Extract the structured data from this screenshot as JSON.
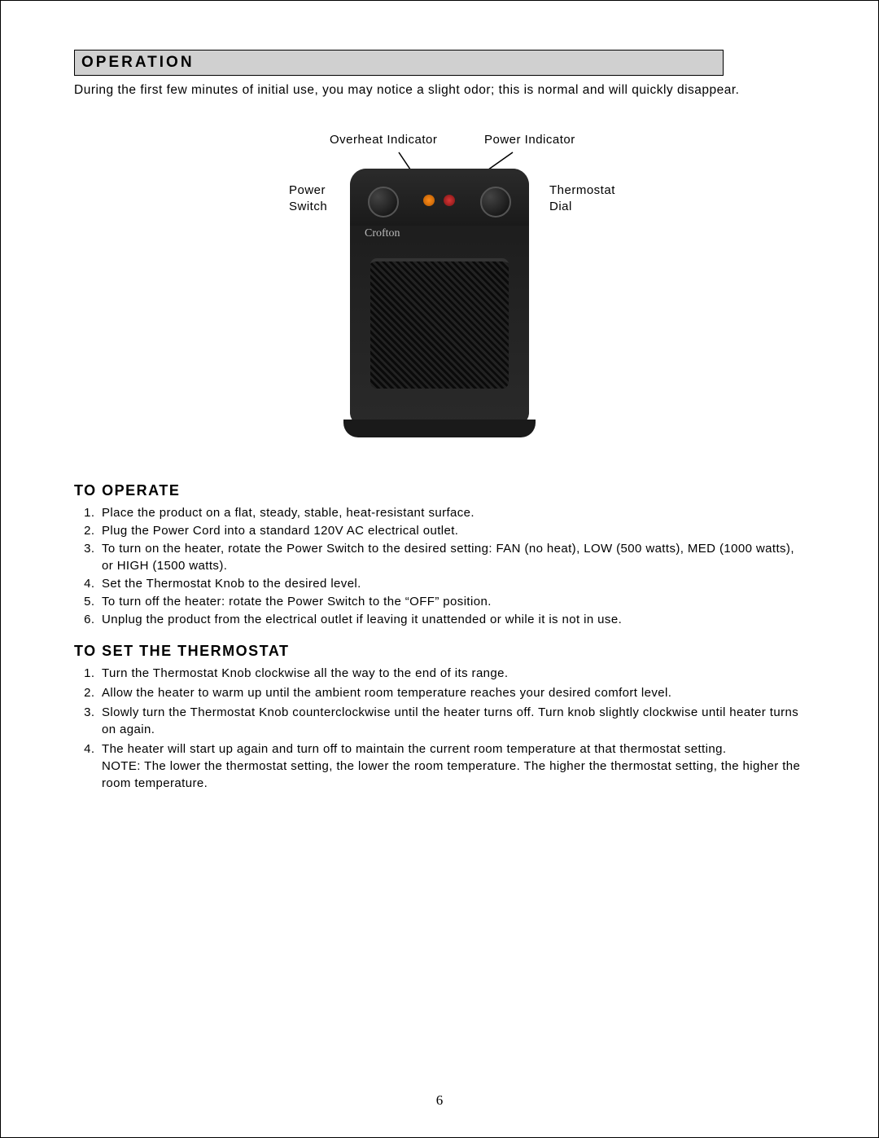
{
  "section_header": "OPERATION",
  "intro": "During the first few minutes of initial use, you may notice a slight odor; this is normal and will quickly disappear.",
  "diagram": {
    "labels": {
      "overheat_indicator": "Overheat Indicator",
      "power_indicator": "Power Indicator",
      "power_switch_l1": "Power",
      "power_switch_l2": "Switch",
      "thermostat_l1": "Thermostat",
      "thermostat_l2": "Dial"
    },
    "brand": "Crofton",
    "colors": {
      "heater_body": "#1a1a1a",
      "overheat_led": "#ff8c1a",
      "power_led": "#d93636",
      "line": "#000000"
    }
  },
  "to_operate": {
    "heading": "TO OPERATE",
    "steps": [
      "Place the product on a flat, steady, stable, heat-resistant surface.",
      "Plug the Power Cord into a standard 120V AC electrical outlet.",
      "To turn on the heater, rotate the Power Switch to the desired setting: FAN (no heat), LOW (500 watts), MED (1000 watts), or HIGH (1500 watts).",
      "Set the Thermostat Knob to the desired level.",
      "To turn off the heater: rotate the Power Switch to the “OFF” position.",
      "Unplug the product from the electrical outlet if leaving it unattended or while it is not in use."
    ]
  },
  "to_set_thermostat": {
    "heading": "TO SET THE THERMOSTAT",
    "steps": [
      "Turn the Thermostat Knob clockwise all the way to the end of its range.",
      "Allow the heater to warm up until the ambient room temperature reaches your desired comfort level.",
      "Slowly turn the Thermostat Knob counterclockwise until the heater turns off.  Turn knob slightly clockwise until heater turns on again.",
      "The heater will start up again and turn off to maintain the current room temperature at that thermostat setting.\nNOTE:  The lower the thermostat setting, the lower the room temperature.  The higher the thermostat setting, the higher the room temperature."
    ]
  },
  "page_number": "6"
}
